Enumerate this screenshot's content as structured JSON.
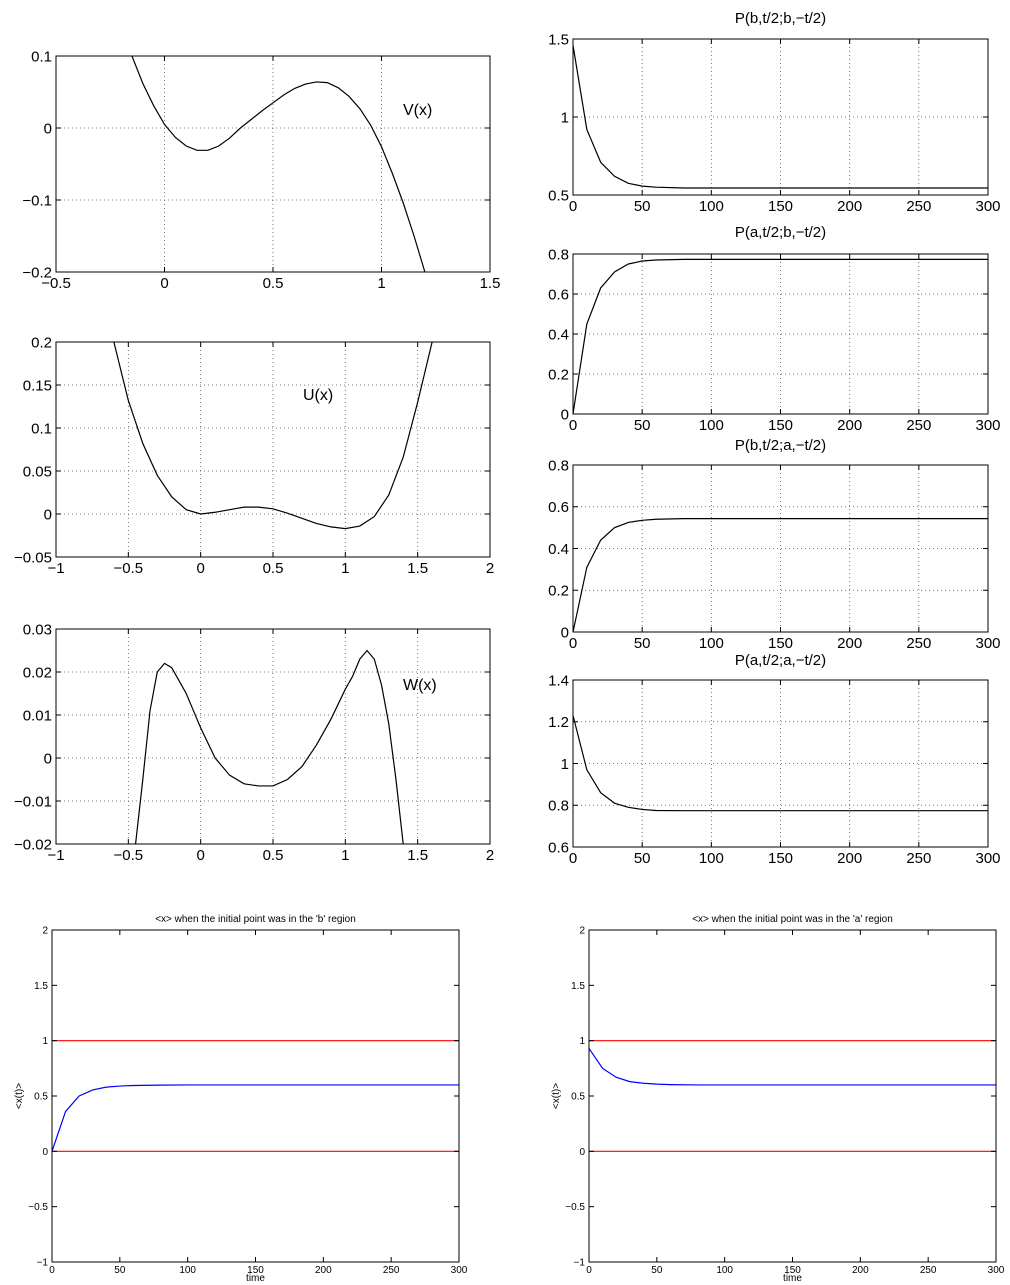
{
  "chart_data": [
    {
      "id": "V",
      "type": "line",
      "annotation": "V(x)",
      "xlim": [
        -0.5,
        1.5
      ],
      "ylim": [
        -0.2,
        0.1
      ],
      "xticks": [
        -0.5,
        0,
        0.5,
        1,
        1.5
      ],
      "xtick_labels": [
        "−0.5",
        "0",
        "0.5",
        "1",
        "1.5"
      ],
      "yticks": [
        -0.2,
        -0.1,
        0,
        0.1
      ],
      "ytick_labels": [
        "−0.2",
        "−0.1",
        "0",
        "0.1"
      ],
      "grid": true,
      "series": [
        {
          "color": "#000000",
          "x": [
            -0.15,
            -0.1,
            -0.05,
            0,
            0.05,
            0.1,
            0.15,
            0.2,
            0.25,
            0.3,
            0.35,
            0.4,
            0.45,
            0.5,
            0.55,
            0.6,
            0.65,
            0.7,
            0.75,
            0.8,
            0.85,
            0.9,
            0.95,
            1.0,
            1.05,
            1.1,
            1.15,
            1.2
          ],
          "y": [
            0.1,
            0.062,
            0.031,
            0.005,
            -0.013,
            -0.025,
            -0.031,
            -0.031,
            -0.025,
            -0.014,
            0.0,
            0.012,
            0.024,
            0.035,
            0.046,
            0.055,
            0.061,
            0.064,
            0.063,
            0.056,
            0.044,
            0.027,
            0.004,
            -0.026,
            -0.063,
            -0.104,
            -0.15,
            -0.2
          ]
        }
      ]
    },
    {
      "id": "U",
      "type": "line",
      "annotation": "U(x)",
      "xlim": [
        -1,
        2
      ],
      "ylim": [
        -0.05,
        0.2
      ],
      "xticks": [
        -1,
        -0.5,
        0,
        0.5,
        1,
        1.5,
        2
      ],
      "xtick_labels": [
        "−1",
        "−0.5",
        "0",
        "0.5",
        "1",
        "1.5",
        "2"
      ],
      "yticks": [
        -0.05,
        0,
        0.05,
        0.1,
        0.15,
        0.2
      ],
      "ytick_labels": [
        "−0.05",
        "0",
        "0.05",
        "0.1",
        "0.15",
        "0.2"
      ],
      "grid": true,
      "series": [
        {
          "color": "#000000",
          "x": [
            -0.6,
            -0.5,
            -0.4,
            -0.3,
            -0.2,
            -0.1,
            0,
            0.1,
            0.2,
            0.3,
            0.4,
            0.5,
            0.6,
            0.7,
            0.8,
            0.9,
            1.0,
            1.1,
            1.2,
            1.3,
            1.4,
            1.5,
            1.6
          ],
          "y": [
            0.2,
            0.132,
            0.082,
            0.045,
            0.02,
            0.005,
            0.0,
            0.002,
            0.005,
            0.008,
            0.008,
            0.006,
            0.001,
            -0.005,
            -0.011,
            -0.015,
            -0.017,
            -0.014,
            -0.003,
            0.022,
            0.066,
            0.13,
            0.2
          ]
        }
      ]
    },
    {
      "id": "W",
      "type": "line",
      "annotation": "W(x)",
      "xlim": [
        -1,
        2
      ],
      "ylim": [
        -0.02,
        0.03
      ],
      "xticks": [
        -1,
        -0.5,
        0,
        0.5,
        1,
        1.5,
        2
      ],
      "xtick_labels": [
        "−1",
        "−0.5",
        "0",
        "0.5",
        "1",
        "1.5",
        "2"
      ],
      "yticks": [
        -0.02,
        -0.01,
        0,
        0.01,
        0.02,
        0.03
      ],
      "ytick_labels": [
        "−0.02",
        "−0.01",
        "0",
        "0.01",
        "0.02",
        "0.03"
      ],
      "grid": true,
      "series": [
        {
          "color": "#000000",
          "x": [
            -0.45,
            -0.4,
            -0.35,
            -0.3,
            -0.25,
            -0.2,
            -0.15,
            -0.1,
            -0.05,
            0,
            0.1,
            0.2,
            0.3,
            0.4,
            0.5,
            0.6,
            0.7,
            0.8,
            0.9,
            1.0,
            1.05,
            1.1,
            1.15,
            1.2,
            1.25,
            1.3,
            1.35,
            1.4
          ],
          "y": [
            -0.02,
            -0.005,
            0.011,
            0.02,
            0.022,
            0.021,
            0.018,
            0.015,
            0.011,
            0.007,
            0.0,
            -0.004,
            -0.006,
            -0.0065,
            -0.0065,
            -0.005,
            -0.002,
            0.003,
            0.009,
            0.016,
            0.019,
            0.023,
            0.025,
            0.023,
            0.017,
            0.008,
            -0.005,
            -0.02
          ]
        }
      ]
    },
    {
      "id": "Pbb",
      "type": "line",
      "title": "P(b,t/2;b,−t/2)",
      "xlim": [
        0,
        300
      ],
      "ylim": [
        0.5,
        1.5
      ],
      "xticks": [
        0,
        50,
        100,
        150,
        200,
        250,
        300
      ],
      "xtick_labels": [
        "0",
        "50",
        "100",
        "150",
        "200",
        "250",
        "300"
      ],
      "yticks": [
        0.5,
        1,
        1.5
      ],
      "ytick_labels": [
        "0.5",
        "1",
        "1.5"
      ],
      "grid": true,
      "series": [
        {
          "color": "#000000",
          "x": [
            0,
            10,
            20,
            30,
            40,
            50,
            60,
            80,
            100,
            150,
            200,
            250,
            300
          ],
          "y": [
            1.46,
            0.92,
            0.71,
            0.62,
            0.575,
            0.557,
            0.55,
            0.545,
            0.545,
            0.545,
            0.545,
            0.545,
            0.545
          ]
        }
      ]
    },
    {
      "id": "Pab",
      "type": "line",
      "title": "P(a,t/2;b,−t/2)",
      "xlim": [
        0,
        300
      ],
      "ylim": [
        0,
        0.8
      ],
      "xticks": [
        0,
        50,
        100,
        150,
        200,
        250,
        300
      ],
      "xtick_labels": [
        "0",
        "50",
        "100",
        "150",
        "200",
        "250",
        "300"
      ],
      "yticks": [
        0,
        0.2,
        0.4,
        0.6,
        0.8
      ],
      "ytick_labels": [
        "0",
        "0.2",
        "0.4",
        "0.6",
        "0.8"
      ],
      "grid": true,
      "series": [
        {
          "color": "#000000",
          "x": [
            0,
            10,
            20,
            30,
            40,
            50,
            60,
            80,
            100,
            150,
            200,
            250,
            300
          ],
          "y": [
            0.0,
            0.45,
            0.63,
            0.71,
            0.75,
            0.765,
            0.77,
            0.773,
            0.773,
            0.773,
            0.773,
            0.773,
            0.773
          ]
        }
      ]
    },
    {
      "id": "Pba",
      "type": "line",
      "title": "P(b,t/2;a,−t/2)",
      "xlim": [
        0,
        300
      ],
      "ylim": [
        0,
        0.8
      ],
      "xticks": [
        0,
        50,
        100,
        150,
        200,
        250,
        300
      ],
      "xtick_labels": [
        "0",
        "50",
        "100",
        "150",
        "200",
        "250",
        "300"
      ],
      "yticks": [
        0,
        0.2,
        0.4,
        0.6,
        0.8
      ],
      "ytick_labels": [
        "0",
        "0.2",
        "0.4",
        "0.6",
        "0.8"
      ],
      "grid": true,
      "series": [
        {
          "color": "#000000",
          "x": [
            0,
            10,
            20,
            30,
            40,
            50,
            60,
            80,
            100,
            150,
            200,
            250,
            300
          ],
          "y": [
            0.0,
            0.31,
            0.44,
            0.5,
            0.525,
            0.535,
            0.54,
            0.543,
            0.543,
            0.543,
            0.543,
            0.543,
            0.543
          ]
        }
      ]
    },
    {
      "id": "Paa",
      "type": "line",
      "title": "P(a,t/2;a,−t/2)",
      "xlim": [
        0,
        300
      ],
      "ylim": [
        0.6,
        1.4
      ],
      "xticks": [
        0,
        50,
        100,
        150,
        200,
        250,
        300
      ],
      "xtick_labels": [
        "0",
        "50",
        "100",
        "150",
        "200",
        "250",
        "300"
      ],
      "yticks": [
        0.6,
        0.8,
        1,
        1.2,
        1.4
      ],
      "ytick_labels": [
        "0.6",
        "0.8",
        "1",
        "1.2",
        "1.4"
      ],
      "grid": true,
      "series": [
        {
          "color": "#000000",
          "x": [
            0,
            10,
            20,
            30,
            40,
            50,
            60,
            80,
            100,
            150,
            200,
            250,
            300
          ],
          "y": [
            1.23,
            0.97,
            0.86,
            0.81,
            0.79,
            0.78,
            0.775,
            0.774,
            0.774,
            0.774,
            0.774,
            0.774,
            0.774
          ]
        }
      ]
    },
    {
      "id": "Xb",
      "type": "line",
      "title": "<x> when the initial point was in the 'b' region",
      "xlabel": "time",
      "ylabel": "<x(t)>",
      "xlim": [
        0,
        300
      ],
      "ylim": [
        -1,
        2
      ],
      "xticks": [
        0,
        50,
        100,
        150,
        200,
        250,
        300
      ],
      "xtick_labels": [
        "0",
        "50",
        "100",
        "150",
        "200",
        "250",
        "300"
      ],
      "yticks": [
        -1,
        -0.5,
        0,
        0.5,
        1,
        1.5,
        2
      ],
      "ytick_labels": [
        "−1",
        "−0.5",
        "0",
        "0.5",
        "1",
        "1.5",
        "2"
      ],
      "grid": false,
      "series": [
        {
          "color": "#ff0000",
          "x": [
            0,
            300
          ],
          "y": [
            1,
            1
          ]
        },
        {
          "color": "#ff0000",
          "x": [
            0,
            300
          ],
          "y": [
            0,
            0
          ]
        },
        {
          "color": "#0000ff",
          "x": [
            0,
            10,
            20,
            30,
            40,
            50,
            60,
            80,
            100,
            150,
            200,
            250,
            300
          ],
          "y": [
            0.0,
            0.36,
            0.5,
            0.555,
            0.58,
            0.59,
            0.595,
            0.598,
            0.6,
            0.6,
            0.6,
            0.6,
            0.6
          ]
        }
      ]
    },
    {
      "id": "Xa",
      "type": "line",
      "title": "<x> when the initial point was in the 'a' region",
      "xlabel": "time",
      "ylabel": "<x(t)>",
      "xlim": [
        0,
        300
      ],
      "ylim": [
        -1,
        2
      ],
      "xticks": [
        0,
        50,
        100,
        150,
        200,
        250,
        300
      ],
      "xtick_labels": [
        "0",
        "50",
        "100",
        "150",
        "200",
        "250",
        "300"
      ],
      "yticks": [
        -1,
        -0.5,
        0,
        0.5,
        1,
        1.5,
        2
      ],
      "ytick_labels": [
        "−1",
        "−0.5",
        "0",
        "0.5",
        "1",
        "1.5",
        "2"
      ],
      "grid": false,
      "series": [
        {
          "color": "#ff0000",
          "x": [
            0,
            300
          ],
          "y": [
            1,
            1
          ]
        },
        {
          "color": "#ff0000",
          "x": [
            0,
            300
          ],
          "y": [
            0,
            0
          ]
        },
        {
          "color": "#0000ff",
          "x": [
            0,
            10,
            20,
            30,
            40,
            50,
            60,
            80,
            100,
            150,
            200,
            250,
            300
          ],
          "y": [
            0.93,
            0.75,
            0.67,
            0.63,
            0.615,
            0.607,
            0.603,
            0.6,
            0.6,
            0.6,
            0.6,
            0.6,
            0.6
          ]
        }
      ]
    }
  ]
}
